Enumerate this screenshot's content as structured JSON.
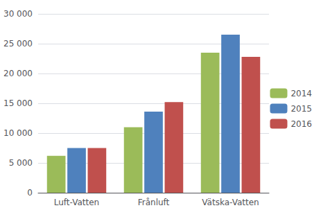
{
  "chart_data": {
    "type": "bar",
    "categories": [
      "Luft-Vatten",
      "Frånluft",
      "Vätska-Vatten"
    ],
    "series": [
      {
        "name": "2014",
        "color": "#9BBB59",
        "values": [
          6200,
          11000,
          23500
        ]
      },
      {
        "name": "2015",
        "color": "#4F81BD",
        "values": [
          7500,
          13600,
          26500
        ]
      },
      {
        "name": "2016",
        "color": "#C0504D",
        "values": [
          7500,
          15200,
          22800
        ]
      }
    ],
    "ylim": [
      0,
      30000
    ],
    "yticks": [
      0,
      {
        "value": 5000,
        "label": "5 000"
      },
      {
        "value": 10000,
        "label": "10 000"
      },
      {
        "value": 15000,
        "label": "15 000"
      },
      {
        "value": 20000,
        "label": "20 000"
      },
      {
        "value": 25000,
        "label": "25 000"
      },
      {
        "value": 30000,
        "label": "30 000"
      }
    ],
    "grid": true,
    "legend": "right"
  }
}
